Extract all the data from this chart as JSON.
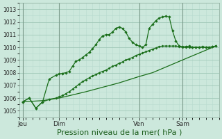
{
  "bg_color": "#cce8dc",
  "grid_color_major": "#a0c8b8",
  "grid_color_minor": "#b8dace",
  "line_color": "#1a6e1a",
  "xlabel": "Pression niveau de la mer( hPa )",
  "xlabel_fontsize": 8,
  "yticks": [
    1005,
    1006,
    1007,
    1008,
    1009,
    1010,
    1011,
    1012,
    1013
  ],
  "ylim": [
    1004.5,
    1013.5
  ],
  "xlim_min": 0,
  "xlim_max": 30,
  "xtick_labels": [
    "Jeu",
    "Dim",
    "Ven",
    "Sam"
  ],
  "xtick_positions": [
    0.5,
    6.0,
    18.0,
    24.5
  ],
  "vline_positions": [
    0.5,
    6.0,
    18.0,
    24.5
  ],
  "series1_x": [
    0.5,
    1.5,
    2.5,
    3.5,
    4.5,
    5.5,
    6.0,
    6.5,
    7.0,
    7.5,
    8.0,
    8.5,
    9.0,
    9.5,
    10.0,
    10.5,
    11.0,
    11.5,
    12.0,
    12.5,
    13.0,
    13.5,
    14.0,
    14.5,
    15.0,
    15.5,
    16.0,
    16.5,
    17.0,
    17.5,
    18.0,
    18.5,
    19.0,
    19.5,
    20.0,
    20.5,
    21.0,
    21.5,
    22.0,
    22.5,
    23.0,
    23.5,
    24.0,
    24.5,
    25.0,
    25.5,
    26.0,
    26.5,
    27.0,
    27.5,
    28.0,
    28.5,
    29.0,
    29.5
  ],
  "series1_y": [
    1005.7,
    1006.0,
    1005.2,
    1005.7,
    1007.5,
    1007.8,
    1007.9,
    1007.95,
    1008.0,
    1008.1,
    1008.5,
    1008.9,
    1009.0,
    1009.2,
    1009.4,
    1009.6,
    1009.9,
    1010.2,
    1010.6,
    1010.9,
    1011.0,
    1011.0,
    1011.2,
    1011.5,
    1011.6,
    1011.5,
    1011.2,
    1010.7,
    1010.4,
    1010.2,
    1010.1,
    1010.0,
    1010.2,
    1011.5,
    1011.8,
    1012.1,
    1012.3,
    1012.4,
    1012.45,
    1012.4,
    1011.3,
    1010.5,
    1010.1,
    1010.05,
    1010.05,
    1010.1,
    1010.0,
    1010.0,
    1010.0,
    1010.05,
    1010.0,
    1010.0,
    1010.05,
    1010.1
  ],
  "series2_x": [
    0.5,
    3.5,
    6.0,
    10.0,
    15.0,
    18.0,
    20.0,
    24.5,
    29.5
  ],
  "series2_y": [
    1005.7,
    1005.8,
    1006.0,
    1006.5,
    1007.2,
    1007.7,
    1008.0,
    1009.0,
    1010.1
  ],
  "series3_x": [
    0.5,
    1.5,
    2.5,
    3.5,
    4.5,
    5.5,
    6.0,
    6.5,
    7.0,
    7.5,
    8.0,
    8.5,
    9.0,
    9.5,
    10.0,
    10.5,
    11.0,
    11.5,
    12.0,
    12.5,
    13.0,
    13.5,
    14.0,
    14.5,
    15.0,
    15.5,
    16.0,
    16.5,
    17.0,
    17.5,
    18.0,
    18.5,
    19.0,
    19.5,
    20.0,
    20.5,
    21.0,
    21.5,
    22.0,
    22.5,
    23.0,
    23.5,
    24.0,
    24.5,
    25.0,
    25.5,
    26.0,
    26.5,
    27.0,
    27.5,
    28.0,
    28.5,
    29.0,
    29.5
  ],
  "series3_y": [
    1005.7,
    1006.0,
    1005.2,
    1005.7,
    1005.9,
    1006.0,
    1006.1,
    1006.2,
    1006.35,
    1006.5,
    1006.7,
    1006.9,
    1007.1,
    1007.3,
    1007.45,
    1007.6,
    1007.75,
    1007.85,
    1008.0,
    1008.1,
    1008.2,
    1008.35,
    1008.5,
    1008.6,
    1008.75,
    1008.85,
    1009.0,
    1009.1,
    1009.2,
    1009.35,
    1009.45,
    1009.55,
    1009.65,
    1009.75,
    1009.85,
    1009.95,
    1010.05,
    1010.1,
    1010.1,
    1010.1,
    1010.1,
    1010.1,
    1010.05,
    1010.0,
    1010.0,
    1010.0,
    1010.0,
    1010.0,
    1010.0,
    1010.0,
    1010.0,
    1010.0,
    1010.05,
    1010.1
  ]
}
